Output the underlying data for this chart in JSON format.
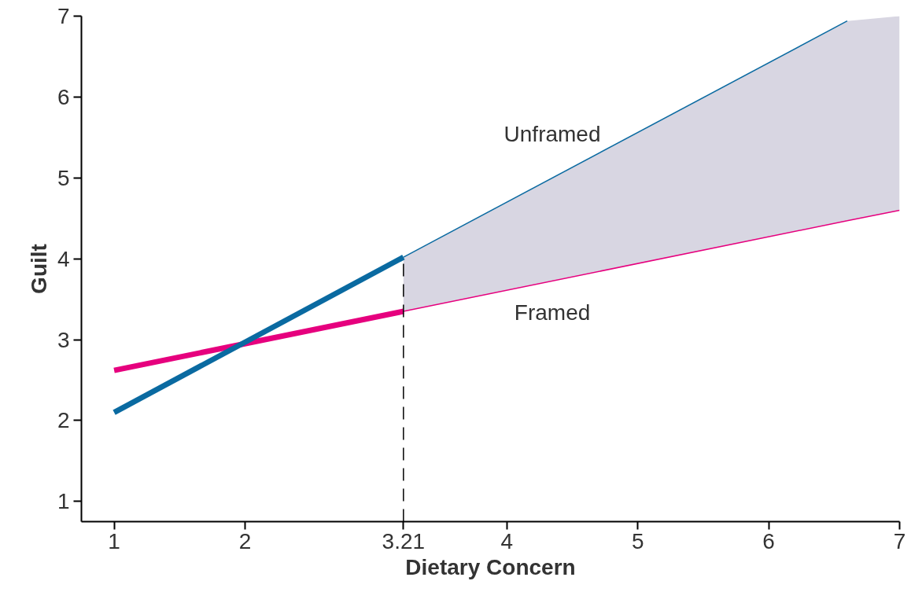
{
  "chart_data": {
    "type": "line",
    "xlabel": "Dietary Concern",
    "ylabel": "Guilt",
    "xlim": [
      0.75,
      7
    ],
    "ylim": [
      0.75,
      7
    ],
    "xticks": [
      1,
      2,
      3.21,
      4,
      5,
      6,
      7
    ],
    "yticks": [
      1,
      2,
      3,
      4,
      5,
      6,
      7
    ],
    "grid": false,
    "marker": "none",
    "line_style": "solid",
    "series": [
      {
        "name": "Unframed",
        "color": "#0a6aa1",
        "x": [
          1,
          3.21,
          6.6
        ],
        "values": [
          2.1,
          4.02,
          6.94
        ]
      },
      {
        "name": "Framed",
        "color": "#e6007e",
        "x": [
          1,
          3.21,
          6.6,
          7
        ],
        "values": [
          2.62,
          3.35,
          4.47,
          4.6
        ],
        "lower": [
          null,
          3.35,
          4.47,
          4.6
        ],
        "upper": [
          null,
          4.02,
          6.94,
          7
        ]
      }
    ],
    "ref_lines": [
      {
        "axis": "x",
        "value": 3.21,
        "color": "#000000",
        "line_style": "dashed"
      }
    ]
  }
}
